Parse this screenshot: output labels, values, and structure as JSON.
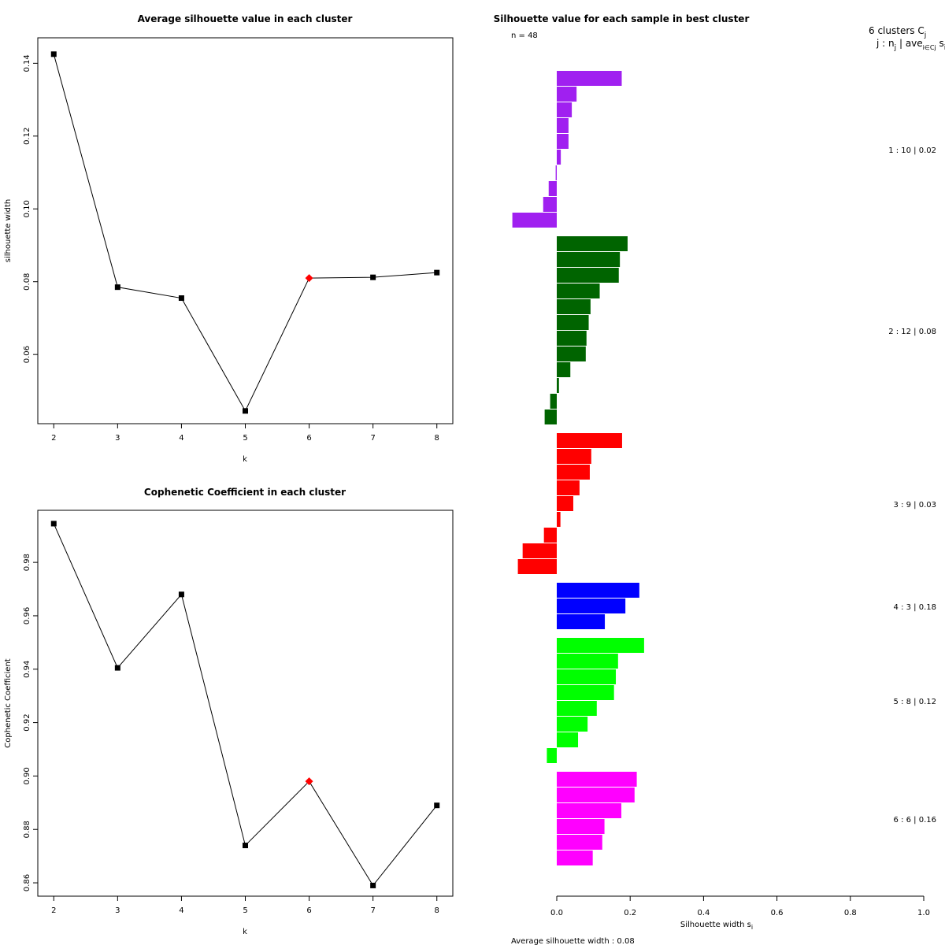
{
  "chart_data": [
    {
      "type": "line",
      "title": "Average silhouette value in each cluster",
      "xlabel": "k",
      "ylabel": "silhouette width",
      "x": [
        2,
        3,
        4,
        5,
        6,
        7,
        8
      ],
      "values": [
        0.1425,
        0.0785,
        0.0755,
        0.0445,
        0.081,
        0.0812,
        0.0825
      ],
      "highlight_x": 6,
      "highlight_color": "#ff0000",
      "point_color": "#000000",
      "ylim": [
        0.041,
        0.147
      ],
      "xlim": [
        1.75,
        8.25
      ],
      "yticks": [
        0.06,
        0.08,
        0.1,
        0.12,
        0.14
      ],
      "ytick_labels": [
        "0.06",
        "0.08",
        "0.10",
        "0.12",
        "0.14"
      ],
      "xticks": [
        2,
        3,
        4,
        5,
        6,
        7,
        8
      ],
      "xtick_labels": [
        "2",
        "3",
        "4",
        "5",
        "6",
        "7",
        "8"
      ]
    },
    {
      "type": "line",
      "title": "Cophenetic Coefficient in each cluster",
      "xlabel": "k",
      "ylabel": "Cophenetic Coefficient",
      "x": [
        2,
        3,
        4,
        5,
        6,
        7,
        8
      ],
      "values": [
        0.9945,
        0.9405,
        0.968,
        0.874,
        0.898,
        0.859,
        0.889
      ],
      "highlight_x": 6,
      "highlight_color": "#ff0000",
      "point_color": "#000000",
      "ylim": [
        0.855,
        0.9995
      ],
      "xlim": [
        1.75,
        8.25
      ],
      "yticks": [
        0.86,
        0.88,
        0.9,
        0.92,
        0.94,
        0.96,
        0.98
      ],
      "ytick_labels": [
        "0.86",
        "0.88",
        "0.90",
        "0.92",
        "0.94",
        "0.96",
        "0.98"
      ],
      "xticks": [
        2,
        3,
        4,
        5,
        6,
        7,
        8
      ],
      "xtick_labels": [
        "2",
        "3",
        "4",
        "5",
        "6",
        "7",
        "8"
      ]
    },
    {
      "type": "bar",
      "orientation": "horizontal",
      "title": "Silhouette value for each sample in best cluster",
      "n_label": "n = 48",
      "header_line1": "6  clusters  C",
      "header_sub1": "j",
      "header_line2": "j :  n",
      "header_sub2": "j",
      "header_line2b": " | ave",
      "header_sub2b": "i∈Cj",
      "header_line2c": " s",
      "header_sub2c": "i",
      "xlabel": "Silhouette width s",
      "xlabel_sub": "i",
      "xlim": [
        -0.12,
        1.0
      ],
      "xticks": [
        0.0,
        0.2,
        0.4,
        0.6,
        0.8,
        1.0
      ],
      "xtick_labels": [
        "0.0",
        "0.2",
        "0.4",
        "0.6",
        "0.8",
        "1.0"
      ],
      "average_label": "Average silhouette width :  0.08",
      "clusters": [
        {
          "label": "1 :   10  |  0.02",
          "color": "#a020f0",
          "values": [
            0.177,
            0.054,
            0.041,
            0.032,
            0.032,
            0.011,
            -0.003,
            -0.022,
            -0.037,
            -0.121
          ]
        },
        {
          "label": "2 :   12  |  0.08",
          "color": "#006400",
          "values": [
            0.193,
            0.172,
            0.169,
            0.117,
            0.092,
            0.087,
            0.081,
            0.079,
            0.037,
            0.006,
            -0.018,
            -0.033
          ]
        },
        {
          "label": "3 :   9  |  0.03",
          "color": "#ff0000",
          "values": [
            0.178,
            0.094,
            0.09,
            0.062,
            0.045,
            0.01,
            -0.035,
            -0.093,
            -0.106
          ]
        },
        {
          "label": "4 :   3  |  0.18",
          "color": "#0000ff",
          "values": [
            0.225,
            0.187,
            0.131
          ]
        },
        {
          "label": "5 :   8  |  0.12",
          "color": "#00ff00",
          "values": [
            0.238,
            0.167,
            0.161,
            0.156,
            0.109,
            0.084,
            0.058,
            -0.027
          ]
        },
        {
          "label": "6 :   6  |  0.16",
          "color": "#ff00ff",
          "values": [
            0.218,
            0.212,
            0.176,
            0.13,
            0.124,
            0.098
          ]
        }
      ]
    }
  ]
}
